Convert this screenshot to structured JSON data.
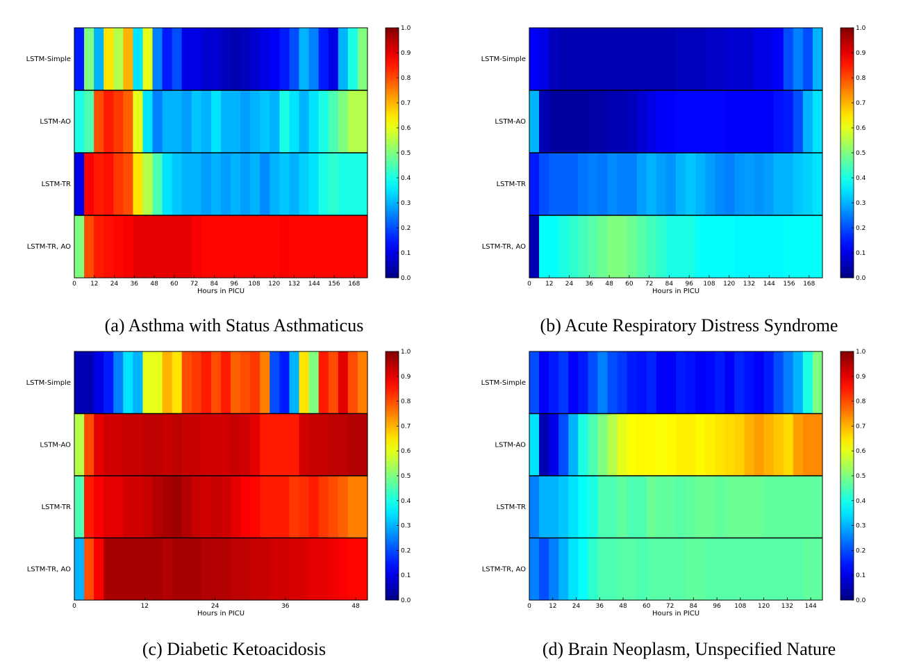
{
  "chart_data": [
    {
      "type": "heatmap",
      "caption": "(a) Asthma with Status Asthmaticus",
      "xlabel": "Hours in PICU",
      "x_range": [
        0,
        176
      ],
      "x_ticks": [
        0,
        12,
        24,
        36,
        48,
        60,
        72,
        84,
        96,
        108,
        120,
        132,
        144,
        156,
        168
      ],
      "rows": [
        "LSTM-Simple",
        "LSTM-AO",
        "LSTM-TR",
        "LSTM-TR, AO"
      ],
      "colorbar_range": [
        0.0,
        1.0
      ],
      "colorbar_ticks": [
        "0.0",
        "0.1",
        "0.2",
        "0.3",
        "0.4",
        "0.5",
        "0.6",
        "0.7",
        "0.8",
        "0.9",
        "1.0"
      ],
      "values": [
        [
          0.15,
          0.5,
          0.3,
          0.65,
          0.55,
          0.7,
          0.35,
          0.6,
          0.25,
          0.15,
          0.2,
          0.1,
          0.1,
          0.08,
          0.08,
          0.06,
          0.05,
          0.06,
          0.08,
          0.1,
          0.12,
          0.15,
          0.2,
          0.3,
          0.25,
          0.15,
          0.1,
          0.3,
          0.4,
          0.5
        ],
        [
          0.4,
          0.45,
          0.8,
          0.85,
          0.82,
          0.78,
          0.6,
          0.35,
          0.25,
          0.3,
          0.3,
          0.28,
          0.32,
          0.3,
          0.35,
          0.3,
          0.3,
          0.28,
          0.3,
          0.32,
          0.3,
          0.4,
          0.35,
          0.3,
          0.35,
          0.4,
          0.45,
          0.5,
          0.55,
          0.55
        ],
        [
          0.1,
          0.88,
          0.85,
          0.86,
          0.82,
          0.8,
          0.65,
          0.55,
          0.45,
          0.35,
          0.32,
          0.3,
          0.3,
          0.28,
          0.3,
          0.28,
          0.3,
          0.28,
          0.3,
          0.26,
          0.3,
          0.32,
          0.3,
          0.33,
          0.35,
          0.4,
          0.42,
          0.4,
          0.4,
          0.4
        ],
        [
          0.5,
          0.8,
          0.85,
          0.86,
          0.87,
          0.88,
          0.9,
          0.9,
          0.9,
          0.9,
          0.9,
          0.9,
          0.88,
          0.87,
          0.87,
          0.87,
          0.87,
          0.87,
          0.87,
          0.87,
          0.87,
          0.88,
          0.87,
          0.87,
          0.87,
          0.87,
          0.87,
          0.87,
          0.87,
          0.87
        ]
      ]
    },
    {
      "type": "heatmap",
      "caption": "(b) Acute Respiratory Distress Syndrome",
      "xlabel": "Hours in PICU",
      "x_range": [
        0,
        176
      ],
      "x_ticks": [
        0,
        12,
        24,
        36,
        48,
        60,
        72,
        84,
        96,
        108,
        120,
        132,
        144,
        156,
        168
      ],
      "rows": [
        "LSTM-Simple",
        "LSTM-AO",
        "LSTM-TR",
        "LSTM-TR, AO"
      ],
      "colorbar_range": [
        0.0,
        1.0
      ],
      "colorbar_ticks": [
        "0.0",
        "0.1",
        "0.2",
        "0.3",
        "0.4",
        "0.5",
        "0.6",
        "0.7",
        "0.8",
        "0.9",
        "1.0"
      ],
      "values": [
        [
          0.12,
          0.1,
          0.06,
          0.05,
          0.05,
          0.05,
          0.05,
          0.05,
          0.05,
          0.05,
          0.05,
          0.05,
          0.05,
          0.05,
          0.05,
          0.06,
          0.06,
          0.06,
          0.07,
          0.07,
          0.08,
          0.08,
          0.08,
          0.1,
          0.1,
          0.12,
          0.2,
          0.25,
          0.2,
          0.3
        ],
        [
          0.3,
          0.05,
          0.03,
          0.03,
          0.03,
          0.03,
          0.04,
          0.04,
          0.05,
          0.05,
          0.06,
          0.08,
          0.1,
          0.12,
          0.12,
          0.13,
          0.13,
          0.13,
          0.13,
          0.13,
          0.12,
          0.12,
          0.12,
          0.12,
          0.12,
          0.14,
          0.15,
          0.2,
          0.3,
          0.35
        ],
        [
          0.15,
          0.2,
          0.22,
          0.22,
          0.22,
          0.24,
          0.25,
          0.24,
          0.26,
          0.25,
          0.25,
          0.28,
          0.3,
          0.28,
          0.27,
          0.3,
          0.32,
          0.3,
          0.28,
          0.26,
          0.25,
          0.27,
          0.28,
          0.27,
          0.28,
          0.3,
          0.3,
          0.32,
          0.33,
          0.35
        ],
        [
          0.05,
          0.38,
          0.38,
          0.4,
          0.42,
          0.44,
          0.46,
          0.48,
          0.5,
          0.5,
          0.48,
          0.46,
          0.44,
          0.42,
          0.4,
          0.4,
          0.4,
          0.38,
          0.38,
          0.38,
          0.38,
          0.37,
          0.37,
          0.37,
          0.37,
          0.37,
          0.38,
          0.38,
          0.38,
          0.38
        ]
      ]
    },
    {
      "type": "heatmap",
      "caption": "(c) Diabetic Ketoacidosis",
      "xlabel": "Hours in PICU",
      "x_range": [
        0,
        50
      ],
      "x_ticks": [
        0,
        12,
        24,
        36,
        48
      ],
      "rows": [
        "LSTM-Simple",
        "LSTM-AO",
        "LSTM-TR",
        "LSTM-TR, AO"
      ],
      "colorbar_range": [
        0.0,
        1.0
      ],
      "colorbar_ticks": [
        "0.0",
        "0.1",
        "0.2",
        "0.3",
        "0.4",
        "0.5",
        "0.6",
        "0.7",
        "0.8",
        "0.9",
        "1.0"
      ],
      "values": [
        [
          0.05,
          0.05,
          0.1,
          0.15,
          0.25,
          0.35,
          0.3,
          0.6,
          0.6,
          0.7,
          0.65,
          0.8,
          0.82,
          0.85,
          0.8,
          0.85,
          0.78,
          0.8,
          0.82,
          0.75,
          0.2,
          0.15,
          0.3,
          0.65,
          0.5,
          0.85,
          0.8,
          0.9,
          0.8,
          0.75
        ],
        [
          0.55,
          0.8,
          0.9,
          0.92,
          0.92,
          0.93,
          0.93,
          0.94,
          0.94,
          0.93,
          0.94,
          0.93,
          0.93,
          0.92,
          0.92,
          0.92,
          0.93,
          0.92,
          0.9,
          0.85,
          0.85,
          0.85,
          0.85,
          0.92,
          0.93,
          0.93,
          0.94,
          0.94,
          0.95,
          0.95
        ],
        [
          0.45,
          0.85,
          0.88,
          0.9,
          0.9,
          0.92,
          0.92,
          0.93,
          0.95,
          0.96,
          0.97,
          0.95,
          0.93,
          0.92,
          0.93,
          0.92,
          0.9,
          0.88,
          0.87,
          0.85,
          0.85,
          0.85,
          0.82,
          0.83,
          0.85,
          0.82,
          0.8,
          0.78,
          0.75,
          0.75
        ],
        [
          0.3,
          0.8,
          0.88,
          0.96,
          0.96,
          0.96,
          0.96,
          0.96,
          0.96,
          0.95,
          0.96,
          0.96,
          0.96,
          0.95,
          0.95,
          0.95,
          0.94,
          0.94,
          0.93,
          0.93,
          0.92,
          0.92,
          0.91,
          0.91,
          0.9,
          0.9,
          0.89,
          0.88,
          0.87,
          0.87
        ]
      ]
    },
    {
      "type": "heatmap",
      "caption": "(d) Brain Neoplasm, Unspecified Nature",
      "xlabel": "Hours in PICU",
      "x_range": [
        0,
        150
      ],
      "x_ticks": [
        0,
        12,
        24,
        36,
        48,
        60,
        72,
        84,
        96,
        108,
        120,
        132,
        144
      ],
      "rows": [
        "LSTM-Simple",
        "LSTM-AO",
        "LSTM-TR",
        "LSTM-TR, AO"
      ],
      "colorbar_range": [
        0.0,
        1.0
      ],
      "colorbar_ticks": [
        "0.0",
        "0.1",
        "0.2",
        "0.3",
        "0.4",
        "0.5",
        "0.6",
        "0.7",
        "0.8",
        "0.9",
        "1.0"
      ],
      "values": [
        [
          0.2,
          0.12,
          0.15,
          0.18,
          0.12,
          0.15,
          0.2,
          0.25,
          0.2,
          0.18,
          0.15,
          0.14,
          0.16,
          0.12,
          0.12,
          0.15,
          0.14,
          0.12,
          0.13,
          0.15,
          0.12,
          0.16,
          0.14,
          0.12,
          0.15,
          0.2,
          0.25,
          0.3,
          0.4,
          0.5
        ],
        [
          0.35,
          0.05,
          0.1,
          0.2,
          0.3,
          0.4,
          0.45,
          0.5,
          0.55,
          0.6,
          0.62,
          0.63,
          0.63,
          0.62,
          0.63,
          0.64,
          0.64,
          0.63,
          0.64,
          0.65,
          0.66,
          0.67,
          0.7,
          0.72,
          0.7,
          0.68,
          0.66,
          0.72,
          0.74,
          0.74
        ],
        [
          0.25,
          0.3,
          0.3,
          0.32,
          0.35,
          0.38,
          0.4,
          0.45,
          0.45,
          0.47,
          0.45,
          0.45,
          0.48,
          0.47,
          0.47,
          0.46,
          0.47,
          0.48,
          0.48,
          0.47,
          0.48,
          0.48,
          0.48,
          0.48,
          0.47,
          0.47,
          0.47,
          0.47,
          0.47,
          0.47
        ],
        [
          0.25,
          0.2,
          0.25,
          0.3,
          0.35,
          0.38,
          0.42,
          0.45,
          0.45,
          0.46,
          0.46,
          0.45,
          0.46,
          0.46,
          0.46,
          0.46,
          0.47,
          0.47,
          0.46,
          0.46,
          0.46,
          0.46,
          0.46,
          0.46,
          0.46,
          0.46,
          0.46,
          0.46,
          0.47,
          0.47
        ]
      ]
    }
  ]
}
